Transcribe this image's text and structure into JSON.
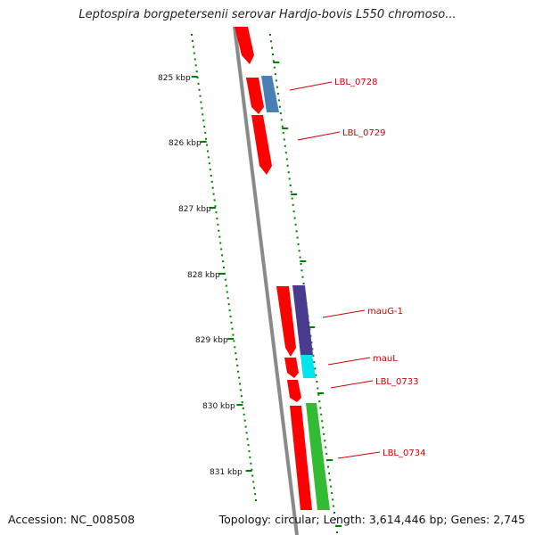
{
  "title": "Leptospira borgpetersenii serovar Hardjo-bovis L550 chromoso...",
  "accession": "Accession: NC_008508",
  "topology": "Topology: circular; Length: 3,614,446 bp; Genes: 2,745",
  "scale_labels": [
    "825 kbp",
    "826 kbp",
    "827 kbp",
    "828 kbp",
    "829 kbp",
    "830 kbp",
    "831 kbp"
  ],
  "gene_labels": [
    "LBL_0728",
    "LBL_0729",
    "mauG-1",
    "mauL",
    "LBL_0733",
    "LBL_0734"
  ],
  "colors": {
    "backbone": "#808080",
    "forward_strand_gene": "#ff0000",
    "gene_blue": "#4a7fb5",
    "gene_purple": "#4b3b8f",
    "gene_cyan": "#00e5ee",
    "gene_green": "#33bb33",
    "tick_marks": "#008000",
    "label_text": "#cc0000"
  }
}
